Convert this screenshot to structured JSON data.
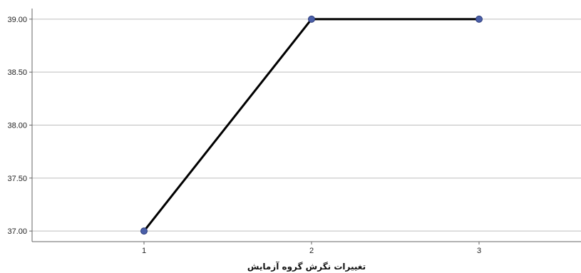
{
  "chart_data": {
    "type": "line",
    "title": "",
    "xlabel": "تغییرات نگرش گروه آزمایش",
    "ylabel": "",
    "x": [
      1,
      2,
      3
    ],
    "series": [
      {
        "values": [
          37.0,
          39.0,
          39.0
        ]
      }
    ],
    "ylim": [
      36.9,
      39.1
    ],
    "yticks": [
      "37.00",
      "37.50",
      "38.00",
      "38.50",
      "39.00"
    ],
    "ytick_values": [
      37.0,
      37.5,
      38.0,
      38.5,
      39.0
    ],
    "xticks": [
      "1",
      "2",
      "3"
    ],
    "grid": true,
    "legend": "none",
    "colors": {
      "line": "#000000",
      "marker": "#4a5fa8",
      "marker_edge": "#2b3a7a",
      "grid": "#bdbdbd",
      "axis": "#666666"
    }
  }
}
